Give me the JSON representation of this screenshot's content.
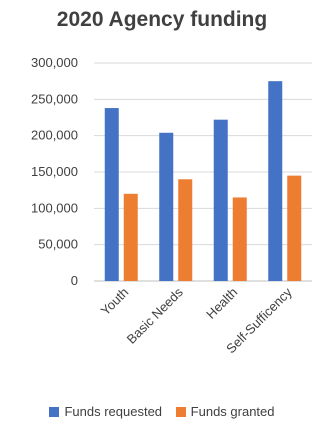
{
  "chart_data": {
    "type": "bar",
    "title": "2020 Agency funding",
    "categories": [
      "Youth",
      "Basic Needs",
      "Health",
      "Self-Sufficency"
    ],
    "series": [
      {
        "name": "Funds requested",
        "color": "#4472C4",
        "values": [
          238000,
          204000,
          222000,
          275000
        ]
      },
      {
        "name": "Funds granted",
        "color": "#ED7D31",
        "values": [
          120000,
          140000,
          115000,
          145000
        ]
      }
    ],
    "ylim": [
      0,
      300000
    ],
    "yticks": [
      "0",
      "50,000",
      "100,000",
      "150,000",
      "200,000",
      "250,000",
      "300,000"
    ],
    "ytick_values": [
      0,
      50000,
      100000,
      150000,
      200000,
      250000,
      300000
    ],
    "grid": true,
    "legend_position": "bottom"
  }
}
